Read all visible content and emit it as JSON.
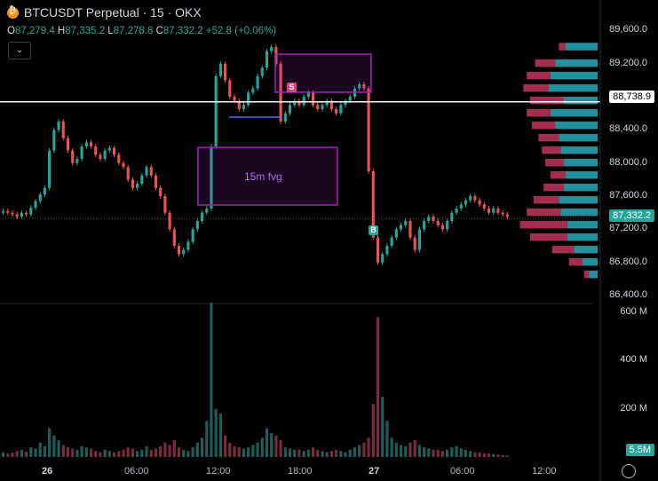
{
  "header": {
    "symbol": "BTCUSDT Perpetual · 15 · OKX",
    "open_label": "O",
    "open": "87,279.4",
    "high_label": "H",
    "high": "87,335.2",
    "low_label": "L",
    "low": "87,278.8",
    "close_label": "C",
    "close": "87,332.2",
    "change": "+52.8 (+0.06%)",
    "toggle_icon": "chevron-down-icon"
  },
  "price_axis": [
    "89,600.0",
    "89,200.0",
    "88,800.0",
    "88,400.0",
    "88,000.0",
    "87,600.0",
    "87,200.0",
    "86,800.0",
    "86,400.0"
  ],
  "price_tags": {
    "line_price": "88,738.9",
    "last_price": "87,332.2"
  },
  "volume_axis": [
    "600 M",
    "400 M",
    "200 M"
  ],
  "volume_tag": "5.5M",
  "time_axis": [
    {
      "label": "26",
      "bold": true
    },
    {
      "label": "06:00",
      "bold": false
    },
    {
      "label": "12:00",
      "bold": false
    },
    {
      "label": "18:00",
      "bold": false
    },
    {
      "label": "27",
      "bold": true
    },
    {
      "label": "06:00",
      "bold": false
    },
    {
      "label": "12:00",
      "bold": false
    }
  ],
  "annotations": {
    "fvg_label": "15m fvg",
    "sell_marker": "S",
    "buy_marker": "B"
  },
  "colors": {
    "up": "#26a69a",
    "down": "#ef5350",
    "profile_buy": "#2aa8b8",
    "profile_sell": "#c2365e",
    "fvg_border": "#9c27b0",
    "hline": "#ffffff",
    "blue_line": "#5b6cf0"
  },
  "chart_data": {
    "type": "candlestick",
    "title": "BTCUSDT Perpetual · 15 · OKX",
    "price_range": [
      86400,
      89700
    ],
    "x_ticks": [
      "26",
      "06:00",
      "12:00",
      "18:00",
      "27",
      "06:00",
      "12:00"
    ],
    "y_ticks": [
      89600,
      89200,
      88800,
      88400,
      88000,
      87600,
      87200,
      86800,
      86400
    ],
    "horizontal_line": 88738.9,
    "last_price": 87332.2,
    "volume_range_M": [
      0,
      600
    ],
    "last_volume_M": 5.5,
    "closes": [
      87420,
      87400,
      87380,
      87350,
      87400,
      87380,
      87460,
      87540,
      87620,
      87700,
      88150,
      88400,
      88500,
      88300,
      88150,
      88000,
      88050,
      88200,
      88250,
      88200,
      88100,
      88050,
      88150,
      88180,
      88100,
      88000,
      87950,
      87800,
      87700,
      87750,
      87850,
      87950,
      87850,
      87700,
      87600,
      87400,
      87200,
      87000,
      86900,
      86950,
      87050,
      87200,
      87300,
      87400,
      87450,
      88200,
      89050,
      89200,
      89000,
      88800,
      88750,
      88650,
      88700,
      88850,
      88900,
      89050,
      89150,
      89350,
      89400,
      89200,
      88500,
      88600,
      88700,
      88750,
      88700,
      88800,
      88850,
      88700,
      88650,
      88700,
      88750,
      88650,
      88600,
      88700,
      88750,
      88800,
      88900,
      88950,
      88900,
      87900,
      87100,
      86800,
      86900,
      87000,
      87100,
      87200,
      87250,
      87300,
      87100,
      86950,
      87200,
      87300,
      87350,
      87300,
      87250,
      87200,
      87300,
      87400,
      87450,
      87500,
      87550,
      87600,
      87550,
      87500,
      87450,
      87400,
      87450,
      87400,
      87380,
      87350
    ],
    "volumes_M": [
      20,
      15,
      18,
      25,
      30,
      22,
      40,
      35,
      60,
      45,
      120,
      90,
      70,
      50,
      40,
      35,
      30,
      45,
      40,
      35,
      25,
      20,
      30,
      25,
      20,
      25,
      30,
      40,
      35,
      25,
      30,
      45,
      30,
      35,
      45,
      60,
      50,
      70,
      40,
      30,
      25,
      40,
      60,
      80,
      150,
      640,
      200,
      180,
      90,
      60,
      45,
      40,
      35,
      40,
      50,
      60,
      80,
      120,
      100,
      90,
      70,
      40,
      35,
      30,
      30,
      25,
      30,
      40,
      30,
      25,
      20,
      25,
      30,
      25,
      20,
      30,
      40,
      50,
      60,
      80,
      220,
      580,
      250,
      150,
      80,
      60,
      50,
      45,
      60,
      70,
      50,
      40,
      35,
      30,
      30,
      25,
      30,
      40,
      45,
      35,
      30,
      25,
      20,
      20,
      15,
      15,
      12,
      10,
      8,
      6
    ],
    "volume_profile": [
      {
        "price": 89400,
        "buy": 95,
        "sell": 20
      },
      {
        "price": 89200,
        "buy": 125,
        "sell": 60
      },
      {
        "price": 89050,
        "buy": 140,
        "sell": 70
      },
      {
        "price": 88900,
        "buy": 145,
        "sell": 75
      },
      {
        "price": 88750,
        "buy": 100,
        "sell": 100
      },
      {
        "price": 88600,
        "buy": 140,
        "sell": 70
      },
      {
        "price": 88450,
        "buy": 125,
        "sell": 70
      },
      {
        "price": 88300,
        "buy": 115,
        "sell": 60
      },
      {
        "price": 88150,
        "buy": 110,
        "sell": 55
      },
      {
        "price": 88000,
        "buy": 100,
        "sell": 55
      },
      {
        "price": 87850,
        "buy": 95,
        "sell": 45
      },
      {
        "price": 87700,
        "buy": 100,
        "sell": 60
      },
      {
        "price": 87550,
        "buy": 115,
        "sell": 75
      },
      {
        "price": 87400,
        "buy": 110,
        "sell": 100
      },
      {
        "price": 87250,
        "buy": 90,
        "sell": 140
      },
      {
        "price": 87100,
        "buy": 90,
        "sell": 110
      },
      {
        "price": 86950,
        "buy": 70,
        "sell": 65
      },
      {
        "price": 86800,
        "buy": 45,
        "sell": 40
      },
      {
        "price": 86650,
        "buy": 25,
        "sell": 15
      }
    ]
  }
}
